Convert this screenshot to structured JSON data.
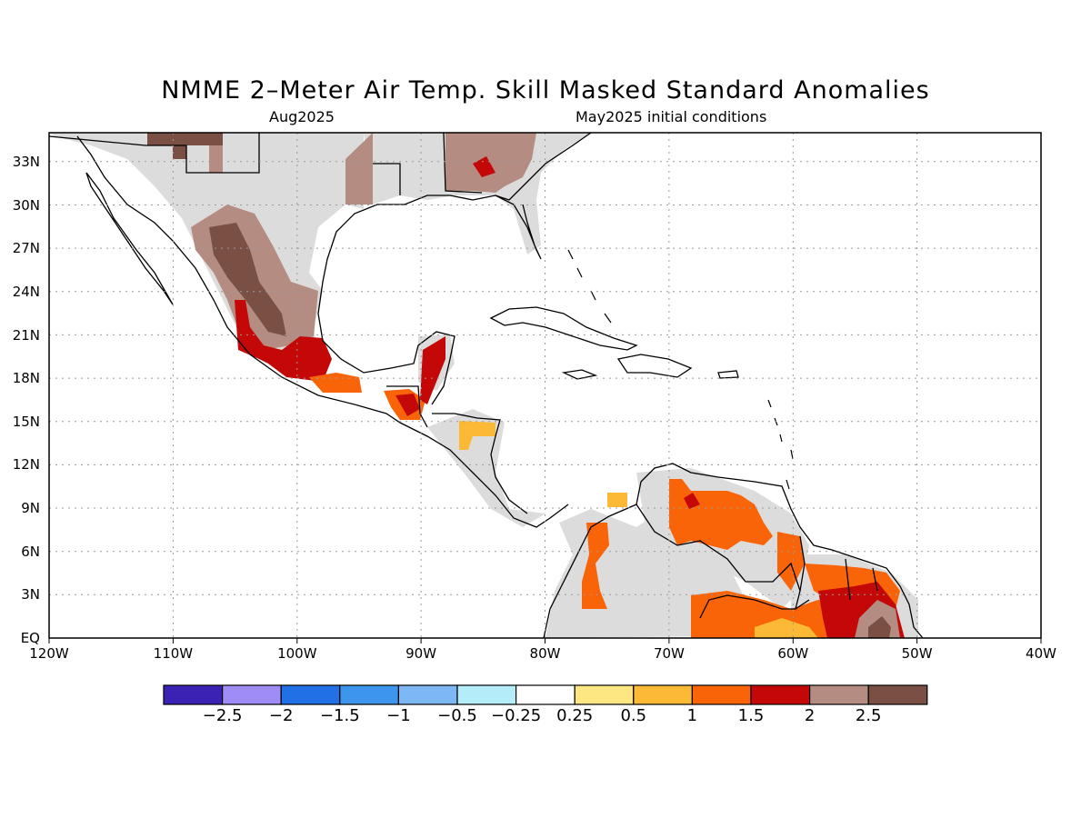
{
  "title": "NMME 2–Meter Air Temp. Skill Masked Standard Anomalies",
  "subtitle_left": "Aug2025",
  "subtitle_right": "May2025 initial conditions",
  "map": {
    "lon_range": [
      -120,
      -40
    ],
    "lat_range": [
      0,
      35
    ],
    "lon_ticks": [
      "120W",
      "110W",
      "100W",
      "90W",
      "80W",
      "70W",
      "60W",
      "50W",
      "40W"
    ],
    "lat_ticks": [
      "EQ",
      "3N",
      "6N",
      "9N",
      "12N",
      "15N",
      "18N",
      "21N",
      "24N",
      "27N",
      "30N",
      "33N"
    ],
    "grid": true
  },
  "colorbar": {
    "colors": [
      "#3b22b4",
      "#9f8cf4",
      "#2170e6",
      "#3d96ec",
      "#7db7f4",
      "#b4ecfa",
      "#ffffff",
      "#fde783",
      "#fcb935",
      "#fa6408",
      "#c40808",
      "#b48c82",
      "#7a4f44"
    ],
    "labels": [
      "−2.5",
      "−2",
      "−1.5",
      "−1",
      "−0.5",
      "−0.25",
      "0.25",
      "0.5",
      "1",
      "1.5",
      "2",
      "2.5"
    ]
  },
  "legend_colors": {
    "no_skill": "#dcdcdc",
    "land_outline": "#000000"
  }
}
